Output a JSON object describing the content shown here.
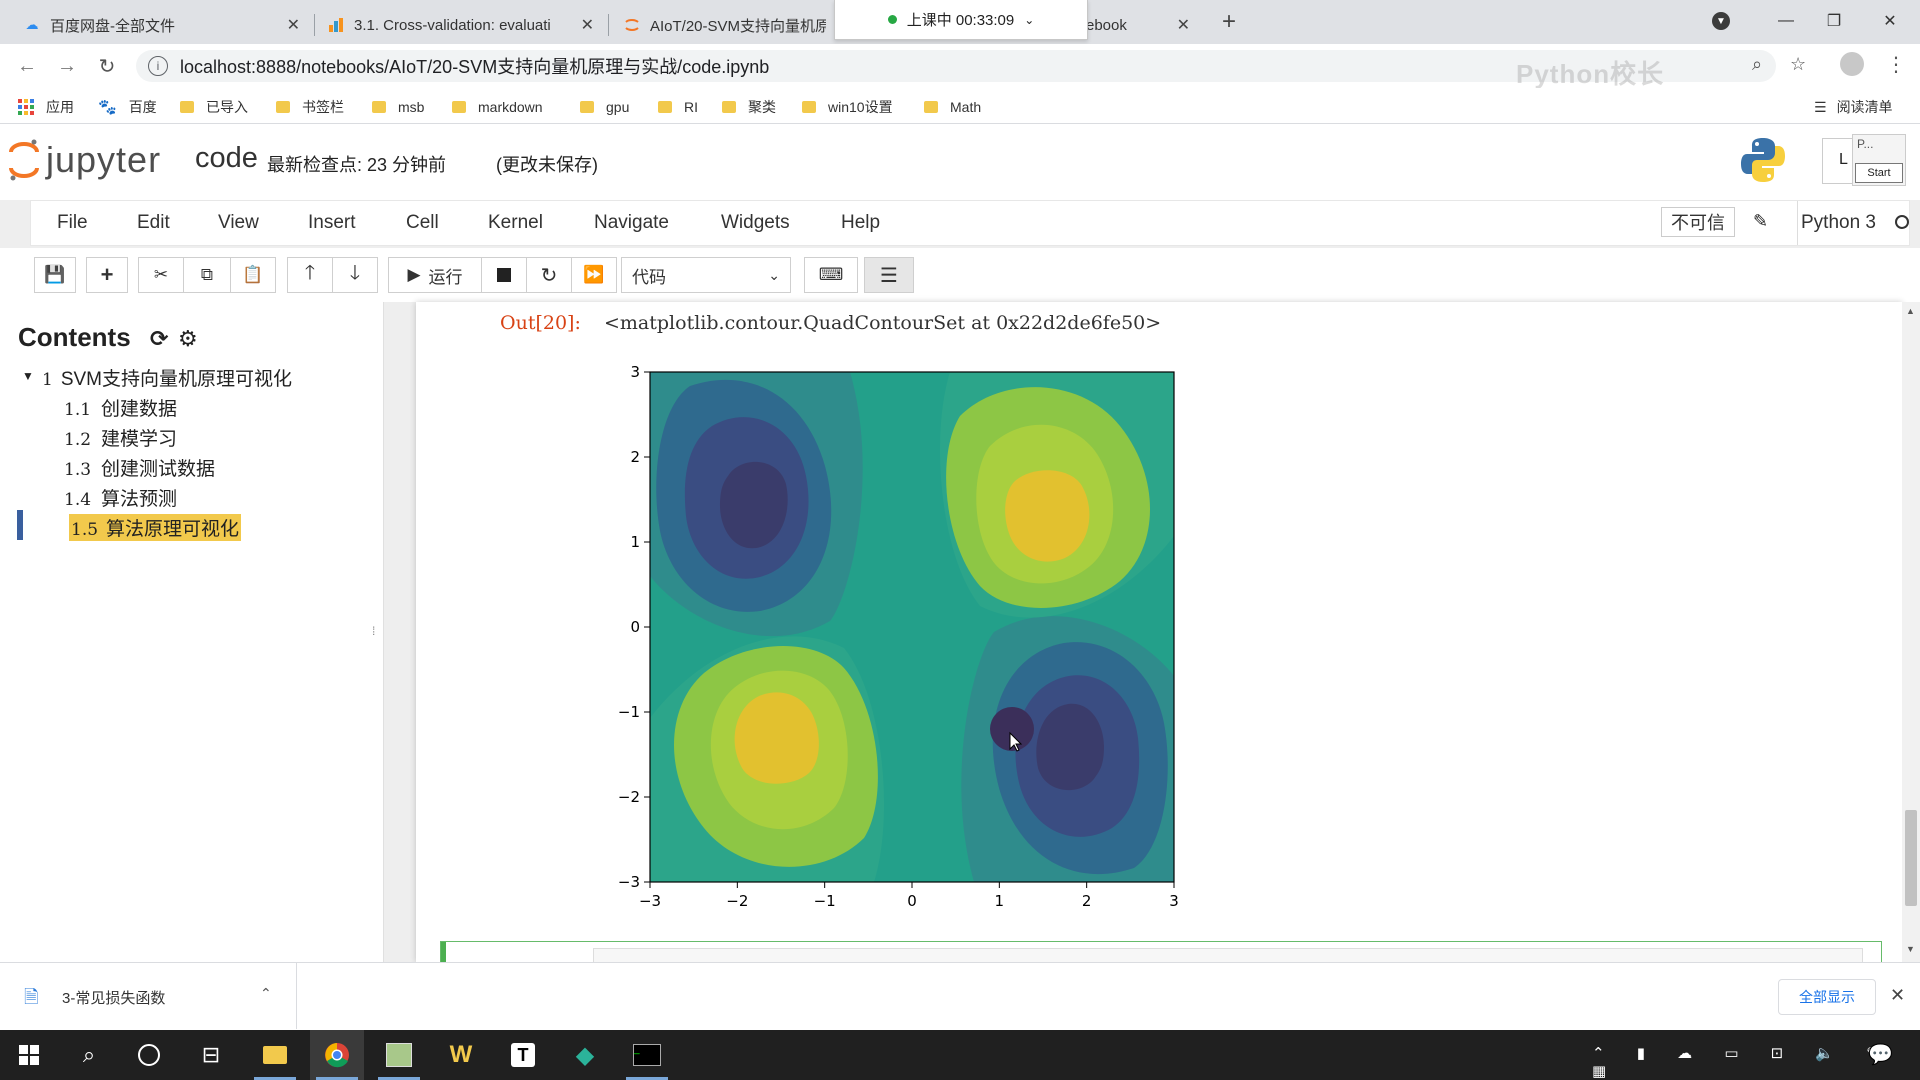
{
  "browser": {
    "tabs": [
      {
        "title": "百度网盘-全部文件",
        "icon": "baidu-pan-icon",
        "active": false
      },
      {
        "title": "3.1. Cross-validation: evaluati",
        "icon": "sklearn-icon",
        "active": false
      },
      {
        "title": "AIoT/20-SVM支持向量机原",
        "icon": "jupyter-icon",
        "active": false
      },
      {
        "title": "ebook",
        "icon": "",
        "active": false
      }
    ],
    "recording_status": "上课中 00:33:09",
    "url": "localhost:8888/notebooks/AIoT/20-SVM支持向量机原理与实战/code.ipynb",
    "bookmarks": [
      "应用",
      "百度",
      "已导入",
      "书签栏",
      "msb",
      "markdown",
      "gpu",
      "RI",
      "聚类",
      "win10设置",
      "Math"
    ],
    "reading_list": "阅读清单",
    "watermark": "Python校长"
  },
  "jupyter": {
    "logo_text": "jupyter",
    "notebook_name": "code",
    "checkpoint": "最新检查点: 23 分钟前",
    "unsaved": "(更改未保存)",
    "menus": [
      "File",
      "Edit",
      "View",
      "Insert",
      "Cell",
      "Kernel",
      "Navigate",
      "Widgets",
      "Help"
    ],
    "trust": "不可信",
    "kernel": "Python 3",
    "run_label": "运行",
    "cell_type": "代码",
    "popup_label": "P...",
    "popup_start": "Start",
    "user_label": "L"
  },
  "toc": {
    "title": "Contents",
    "items": [
      {
        "num": "1",
        "label": "SVM支持向量机原理可视化",
        "level": 1,
        "active": false
      },
      {
        "num": "1.1",
        "label": "创建数据",
        "level": 2,
        "active": false
      },
      {
        "num": "1.2",
        "label": "建模学习",
        "level": 2,
        "active": false
      },
      {
        "num": "1.3",
        "label": "创建测试数据",
        "level": 2,
        "active": false
      },
      {
        "num": "1.4",
        "label": "算法预测",
        "level": 2,
        "active": false
      },
      {
        "num": "1.5",
        "label": "算法原理可视化",
        "level": 2,
        "active": true
      }
    ]
  },
  "output": {
    "prompt": "Out[20]:",
    "repr": "<matplotlib.contour.QuadContourSet at 0x22d2de6fe50>"
  },
  "chart_data": {
    "type": "contour",
    "function": "sin(x)*cos(y)-like saddle pattern, two maxima (yellow) and two minima (dark)",
    "xlim": [
      -3,
      3
    ],
    "ylim": [
      -3,
      3
    ],
    "xticks": [
      "−3",
      "−2",
      "−1",
      "0",
      "1",
      "2",
      "3"
    ],
    "yticks": [
      "3",
      "2",
      "1",
      "0",
      "−1",
      "−2",
      "−3"
    ],
    "peaks": [
      {
        "kind": "max",
        "x": 1.2,
        "y": 1.2
      },
      {
        "kind": "max",
        "x": -1.2,
        "y": -1.2
      },
      {
        "kind": "min",
        "x": -1.2,
        "y": 1.2
      },
      {
        "kind": "min",
        "x": 1.2,
        "y": -1.2
      }
    ],
    "levels_colors": [
      "#3b2f5a",
      "#3a4d82",
      "#2f6a8e",
      "#23a08a",
      "#8dc645",
      "#e2c12f"
    ]
  },
  "downloads": {
    "file": "3-常见损失函数",
    "show_all": "全部显示"
  },
  "taskbar": {
    "apps": [
      "start-icon",
      "search-icon",
      "cortana-icon",
      "task-view-icon",
      "file-explorer-icon",
      "chrome-icon",
      "paint-icon",
      "wps-icon",
      "typora-icon",
      "media-player-icon",
      "terminal-icon"
    ]
  }
}
